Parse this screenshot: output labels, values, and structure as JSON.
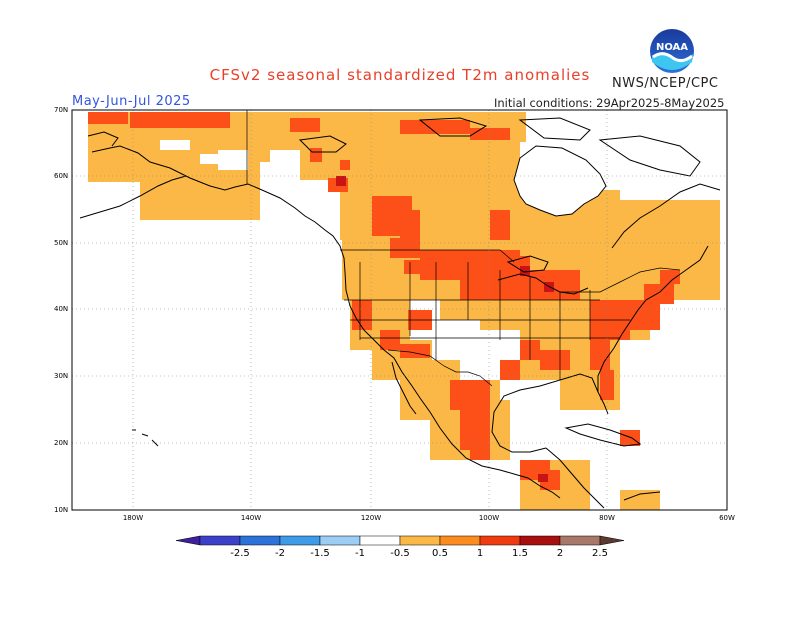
{
  "header": {
    "title": "CFSv2 seasonal standardized T2m anomalies",
    "org": "NWS/NCEP/CPC",
    "period": "May-Jun-Jul 2025",
    "initial_conditions": "Initial conditions: 29Apr2025-8May2025",
    "logo_text": "NOAA"
  },
  "map": {
    "lat_labels": [
      "70N",
      "60N",
      "50N",
      "40N",
      "30N",
      "20N",
      "10N"
    ],
    "lon_labels": [
      "180W",
      "140W",
      "120W",
      "100W",
      "80W",
      "60W"
    ]
  },
  "legend": {
    "ticks": [
      "-2.5",
      "-2",
      "-1.5",
      "-1",
      "-0.5",
      "0.5",
      "1",
      "1.5",
      "2",
      "2.5"
    ],
    "colors": [
      "#3d1fa0",
      "#3b42c9",
      "#2b73d9",
      "#3d9be8",
      "#9bcdf5",
      "#ffffff",
      "#fcb846",
      "#fc8c20",
      "#f03a10",
      "#a80f0f",
      "#a87868",
      "#5c3a30"
    ]
  },
  "colors": {
    "weak_warm": "#fcb846",
    "moderate_warm": "#fc5018",
    "strong_warm": "#c81414",
    "coast": "#000000"
  }
}
